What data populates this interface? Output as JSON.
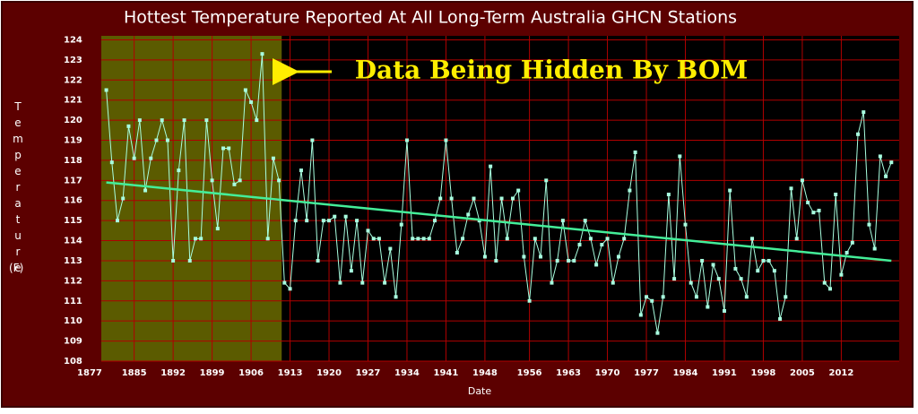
{
  "chart_data": {
    "type": "line",
    "title": "Hottest Temperature Reported At All Long-Term Australia GHCN Stations",
    "x_label": "Date",
    "y_label": "Temperature",
    "y_unit": "(F)",
    "annotation": "Data Being Hidden By BOM",
    "highlight": {
      "xlim": [
        1879.1,
        1911.5
      ],
      "color": "#7a7a00"
    },
    "xlim": [
      1879.1,
      2022.4
    ],
    "ylim": [
      108,
      124.2
    ],
    "xticks": [
      1877,
      1885,
      1892,
      1899,
      1906,
      1913,
      1920,
      1927,
      1934,
      1941,
      1948,
      1956,
      1963,
      1970,
      1977,
      1984,
      1991,
      1998,
      2005,
      2012
    ],
    "yticks": [
      108,
      109,
      110,
      111,
      112,
      113,
      114,
      115,
      116,
      117,
      118,
      119,
      120,
      121,
      122,
      123,
      124
    ],
    "grid": true,
    "x": [
      1880,
      1881,
      1882,
      1883,
      1884,
      1885,
      1886,
      1887,
      1888,
      1889,
      1890,
      1891,
      1892,
      1893,
      1894,
      1895,
      1896,
      1897,
      1898,
      1899,
      1900,
      1901,
      1902,
      1903,
      1904,
      1905,
      1906,
      1907,
      1908,
      1909,
      1910,
      1911,
      1912,
      1913,
      1914,
      1915,
      1916,
      1917,
      1918,
      1919,
      1920,
      1921,
      1922,
      1923,
      1924,
      1925,
      1926,
      1927,
      1928,
      1929,
      1930,
      1931,
      1932,
      1933,
      1934,
      1935,
      1936,
      1937,
      1938,
      1939,
      1940,
      1941,
      1942,
      1943,
      1944,
      1945,
      1946,
      1947,
      1948,
      1949,
      1950,
      1951,
      1952,
      1953,
      1954,
      1955,
      1956,
      1957,
      1958,
      1959,
      1960,
      1961,
      1962,
      1963,
      1964,
      1965,
      1966,
      1967,
      1968,
      1969,
      1970,
      1971,
      1972,
      1973,
      1974,
      1975,
      1976,
      1977,
      1978,
      1979,
      1980,
      1981,
      1982,
      1983,
      1984,
      1985,
      1986,
      1987,
      1988,
      1989,
      1990,
      1991,
      1992,
      1993,
      1994,
      1995,
      1996,
      1997,
      1998,
      1999,
      2000,
      2001,
      2002,
      2003,
      2004,
      2005,
      2006,
      2007,
      2008,
      2009,
      2010,
      2011,
      2012,
      2013,
      2014,
      2015,
      2016,
      2017,
      2018,
      2019,
      2020,
      2021
    ],
    "series": [
      {
        "color": "#a8ffe0",
        "values": [
          121.5,
          117.9,
          115.0,
          116.1,
          119.7,
          118.1,
          120.0,
          116.5,
          118.1,
          119.0,
          120.0,
          119.0,
          113.0,
          117.5,
          120.0,
          113.0,
          114.1,
          114.1,
          120.0,
          117.0,
          114.6,
          118.6,
          118.6,
          116.8,
          117.0,
          121.5,
          120.9,
          120.0,
          123.3,
          114.1,
          118.1,
          117.0,
          111.9,
          111.6,
          115.0,
          117.5,
          115.0,
          119.0,
          113.0,
          115.0,
          115.0,
          115.2,
          111.9,
          115.2,
          112.5,
          115.0,
          111.9,
          114.5,
          114.1,
          114.1,
          111.9,
          113.6,
          111.2,
          114.8,
          119.0,
          114.1,
          114.1,
          114.1,
          114.1,
          115.0,
          116.1,
          119.0,
          116.1,
          113.4,
          114.1,
          115.3,
          116.1,
          115.0,
          113.2,
          117.7,
          113.0,
          116.1,
          114.1,
          116.1,
          116.5,
          113.2,
          111.0,
          114.1,
          113.2,
          117.0,
          111.9,
          113.0,
          115.0,
          113.0,
          113.0,
          113.8,
          115.0,
          114.1,
          112.8,
          113.8,
          114.1,
          111.9,
          113.2,
          114.1,
          116.5,
          118.4,
          110.3,
          111.2,
          111.0,
          109.4,
          111.2,
          116.3,
          112.1,
          118.2,
          114.8,
          111.9,
          111.2,
          113.0,
          110.7,
          112.8,
          112.1,
          110.5,
          116.5,
          112.6,
          112.1,
          111.2,
          114.1,
          112.5,
          113.0,
          113.0,
          112.5,
          110.1,
          111.2,
          116.6,
          114.1,
          117.0,
          115.9,
          115.4,
          115.5,
          111.9,
          111.6,
          116.3,
          112.3,
          113.4,
          113.9,
          119.3,
          120.4,
          114.8,
          113.6,
          118.2,
          117.2,
          117.9
        ]
      }
    ],
    "trend": {
      "color": "#44ee99",
      "x": [
        1880,
        2021
      ],
      "values": [
        116.9,
        113.0
      ]
    }
  }
}
